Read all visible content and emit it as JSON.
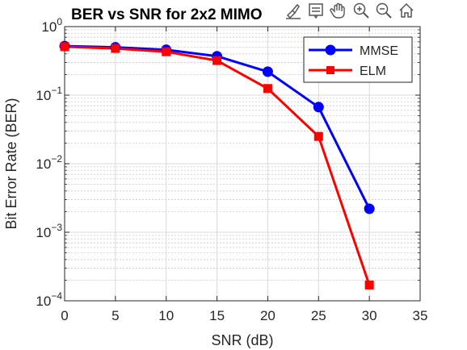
{
  "chart_data": {
    "type": "line",
    "title": "BER vs SNR for 2x2 MIMO",
    "xlabel": "SNR (dB)",
    "ylabel": "Bit Error Rate (BER)",
    "xlim": [
      0,
      35
    ],
    "ylim": [
      0.0001,
      1
    ],
    "yscale": "log",
    "xticks": [
      0,
      5,
      10,
      15,
      20,
      25,
      30,
      35
    ],
    "ytick_exponents": [
      -4,
      -3,
      -2,
      -1,
      0
    ],
    "grid": true,
    "legend_position": "top-right",
    "x": [
      0,
      5,
      10,
      15,
      20,
      25,
      30
    ],
    "series": [
      {
        "name": "MMSE",
        "color": "#0000ff",
        "marker": "circle",
        "values": [
          0.52,
          0.5,
          0.46,
          0.37,
          0.22,
          0.067,
          0.0022
        ]
      },
      {
        "name": "ELM",
        "color": "#ff0000",
        "marker": "square",
        "values": [
          0.51,
          0.48,
          0.43,
          0.32,
          0.125,
          0.025,
          0.00017
        ]
      }
    ]
  },
  "toolbar": {
    "icons": [
      "brush-icon",
      "datatip-icon",
      "pan-icon",
      "zoom-in-icon",
      "zoom-out-icon",
      "home-icon"
    ]
  }
}
